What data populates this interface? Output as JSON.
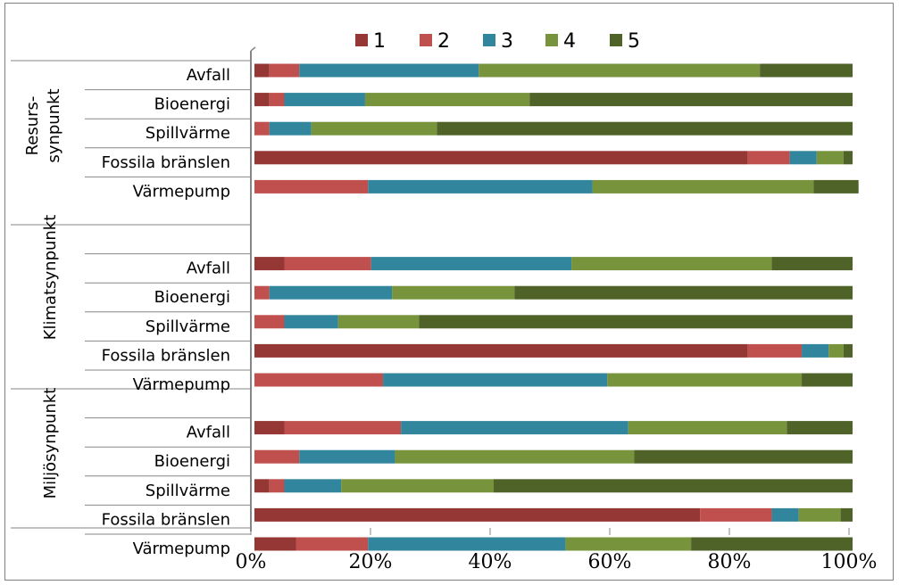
{
  "chart_data": {
    "type": "bar",
    "orientation": "horizontal",
    "stacked": "percent",
    "legend": {
      "position": "top",
      "entries": [
        "1",
        "2",
        "3",
        "4",
        "5"
      ]
    },
    "colors": [
      "#953735",
      "#c0504d",
      "#31859c",
      "#77933c",
      "#4f6228"
    ],
    "xlim": [
      0,
      100
    ],
    "x_ticks": [
      "0%",
      "20%",
      "40%",
      "60%",
      "80%",
      "100%"
    ],
    "grid": false,
    "groups": [
      {
        "label": "Resurs-\nsynpunkt",
        "categories": [
          "Avfall",
          "Bioenergi",
          "Spillvärme",
          "Fossila bränslen",
          "Värmepump"
        ],
        "values": [
          [
            2.5,
            5,
            30,
            47,
            15.5
          ],
          [
            2.5,
            2.5,
            13.5,
            27.5,
            54
          ],
          [
            0,
            2.5,
            7,
            21,
            69.5
          ],
          [
            82.5,
            7,
            4.5,
            4.5,
            1.5
          ],
          [
            0,
            19,
            37.5,
            37,
            7.5
          ]
        ]
      },
      {
        "label": "Klimatsynpunkt",
        "categories": [
          "Avfall",
          "Bioenergi",
          "Spillvärme",
          "Fossila bränslen",
          "Värmepump"
        ],
        "values": [
          [
            5,
            14.5,
            33.5,
            33.5,
            13.5
          ],
          [
            0,
            2.5,
            20.5,
            20.5,
            56.5
          ],
          [
            0,
            5,
            9,
            13.5,
            72.5
          ],
          [
            82.5,
            9,
            4.5,
            2.5,
            1.5
          ],
          [
            0,
            21.5,
            37.5,
            32.5,
            8.5
          ]
        ]
      },
      {
        "label": "Miljösynpunkt",
        "categories": [
          "Avfall",
          "Bioenergi",
          "Spillvärme",
          "Fossila bränslen",
          "Värmepump"
        ],
        "values": [
          [
            5,
            19.5,
            38,
            26.5,
            11
          ],
          [
            0,
            7.5,
            16,
            40,
            36.5
          ],
          [
            2.5,
            2.5,
            9.5,
            25.5,
            60
          ],
          [
            74.5,
            12,
            4.5,
            7,
            2
          ],
          [
            7,
            12,
            33,
            21,
            27
          ]
        ]
      }
    ]
  }
}
